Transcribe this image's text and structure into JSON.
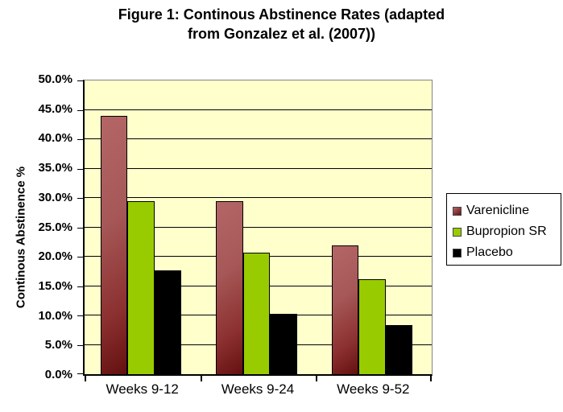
{
  "header": {
    "title_line1": "Figure 1: Continous Abstinence Rates (adapted",
    "title_line2": "from Gonzalez et al. (2007))"
  },
  "chart_data": {
    "type": "bar",
    "title": "Figure 1: Continous Abstinence Rates (adapted from Gonzalez et al. (2007))",
    "categories": [
      "Weeks 9-12",
      "Weeks 9-24",
      "Weeks 9-52"
    ],
    "series": [
      {
        "name": "Varenicline",
        "values": [
          44.0,
          29.5,
          21.9
        ],
        "color": "#a65757",
        "color_light": "#b46666",
        "color_dark": "#641010"
      },
      {
        "name": "Bupropion SR",
        "values": [
          29.5,
          20.7,
          16.1
        ],
        "color": "#99cc00"
      },
      {
        "name": "Placebo",
        "values": [
          17.7,
          10.3,
          8.4
        ],
        "color": "#000000"
      }
    ],
    "xlabel": "",
    "ylabel": "Continous Abstinence %",
    "ylim": [
      0,
      50
    ],
    "ytick_step": 5,
    "ytick_labels": [
      "0.0%",
      "5.0%",
      "10.0%",
      "15.0%",
      "20.0%",
      "25.0%",
      "30.0%",
      "35.0%",
      "40.0%",
      "45.0%",
      "50.0%"
    ],
    "grid": true,
    "legend_position": "right",
    "plot_bg": "#ffffcc",
    "gridline_color": "#000000",
    "outer_border_color": "#848484"
  }
}
